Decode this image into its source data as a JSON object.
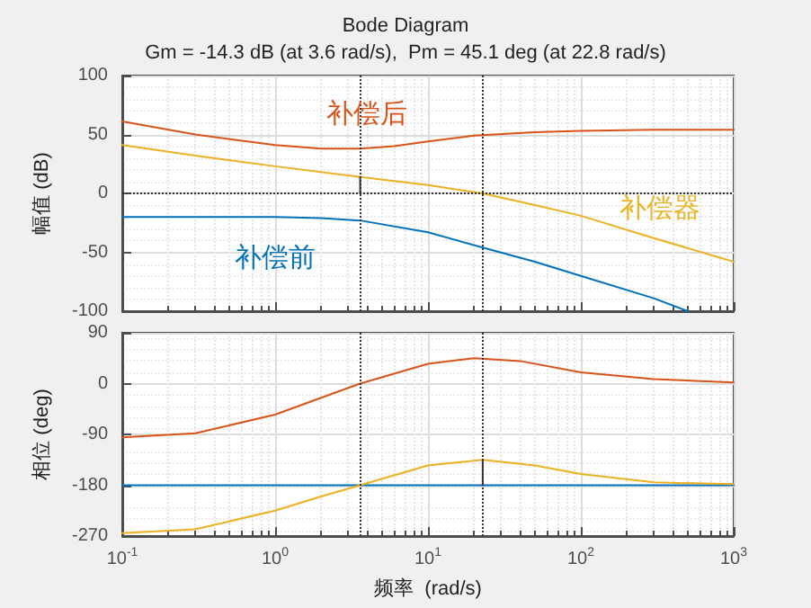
{
  "chart_data": [
    {
      "type": "line",
      "title": "Bode Diagram",
      "subtitle": "Gm = -14.3 dB (at 3.6 rad/s),  Pm = 45.1 deg (at 22.8 rad/s)",
      "ylabel": "幅值 (dB)",
      "series": [
        {
          "color": "#d95319",
          "x": [
            0.1,
            0.3,
            1,
            2,
            3.6,
            6,
            10,
            20,
            50,
            100,
            300,
            1000
          ],
          "values": [
            61,
            50,
            41,
            38,
            38,
            40,
            44,
            49,
            52,
            53,
            54,
            54
          ]
        },
        {
          "color": "#0072bd",
          "x": [
            0.1,
            1,
            2,
            3.6,
            10,
            22.8,
            50,
            100,
            300,
            500
          ],
          "values": [
            -20,
            -20,
            -21,
            -23,
            -33,
            -46,
            -58,
            -70,
            -89,
            -100
          ]
        },
        {
          "color": "#edb120",
          "x": [
            0.1,
            0.3,
            1,
            3.6,
            10,
            22.8,
            50,
            100,
            300,
            1000
          ],
          "values": [
            41,
            32,
            23,
            14,
            7,
            0,
            -10,
            -19,
            -38,
            -58
          ]
        },
        {
          "color": "#333333",
          "x": [
            3.6,
            3.6
          ],
          "values": [
            0,
            14
          ]
        }
      ],
      "annotations": [
        "补偿后",
        "补偿前",
        "补偿器"
      ],
      "ref_lines": [
        {
          "axis": "y",
          "value": 0,
          "color": "#333333",
          "line_style": "dotted"
        },
        {
          "axis": "x",
          "value": 3.6,
          "color": "#333333",
          "line_style": "dotted"
        },
        {
          "axis": "x",
          "value": 22.8,
          "color": "#333333",
          "line_style": "dotted"
        }
      ],
      "log": "x",
      "grid": true,
      "line_style": "solid",
      "marker": "none",
      "tick_labels": "y",
      "xlim": [
        0.1,
        1000
      ],
      "xticks": [
        {
          "value": 0.1,
          "label": null
        },
        {
          "value": 1,
          "label": null
        },
        {
          "value": 10,
          "label": null
        },
        {
          "value": 100,
          "label": null
        },
        {
          "value": 1000,
          "label": null
        }
      ],
      "ylim": [
        -100,
        100
      ],
      "yticks": [
        -100,
        -50,
        0,
        50,
        100
      ]
    },
    {
      "type": "line",
      "xlabel": "频率  (rad/s)",
      "ylabel": "相位 (deg)",
      "series": [
        {
          "color": "#d95319",
          "x": [
            0.1,
            0.3,
            1,
            2,
            3.6,
            10,
            20,
            40,
            100,
            300,
            1000
          ],
          "values": [
            -95,
            -88,
            -55,
            -25,
            0,
            35,
            45,
            40,
            20,
            8,
            2
          ]
        },
        {
          "color": "#0072bd",
          "x": [
            0.1,
            1000
          ],
          "values": [
            -180,
            -180
          ]
        },
        {
          "color": "#edb120",
          "x": [
            0.1,
            0.3,
            1,
            2,
            3.6,
            10,
            22.8,
            50,
            100,
            300,
            1000
          ],
          "values": [
            -265,
            -258,
            -225,
            -200,
            -180,
            -145,
            -135,
            -145,
            -160,
            -175,
            -178
          ]
        },
        {
          "color": "#333333",
          "x": [
            22.8,
            22.8
          ],
          "values": [
            -180,
            -135
          ]
        }
      ],
      "ref_lines": [
        {
          "axis": "x",
          "value": 3.6,
          "color": "#333333",
          "line_style": "dotted"
        },
        {
          "axis": "x",
          "value": 22.8,
          "color": "#333333",
          "line_style": "dotted"
        }
      ],
      "log": "x",
      "grid": true,
      "line_style": "solid",
      "marker": "none",
      "xlim": [
        0.1,
        1000
      ],
      "xticks": [
        {
          "value": 0.1,
          "label": "10$^{-1}$"
        },
        {
          "value": 1,
          "label": "10$^{0}$"
        },
        {
          "value": 10,
          "label": "10$^{1}$"
        },
        {
          "value": 100,
          "label": "10$^{2}$"
        },
        {
          "value": 1000,
          "label": "10$^{3}$"
        }
      ],
      "ylim": [
        -270,
        90
      ],
      "yticks": [
        -270,
        -180,
        -90,
        0,
        90
      ]
    }
  ]
}
